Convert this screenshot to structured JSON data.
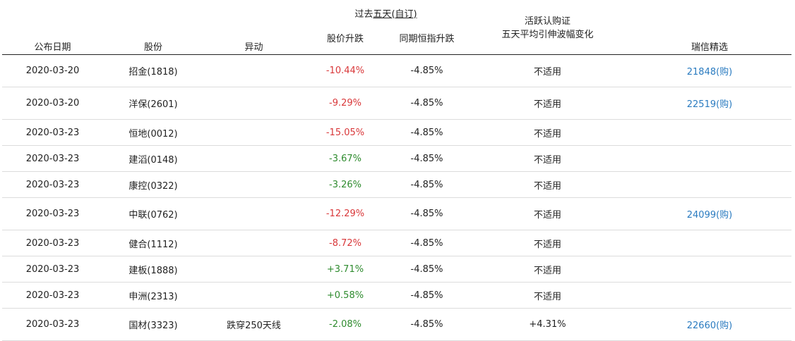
{
  "header": {
    "date": "公布日期",
    "stock": "股份",
    "movement": "异动",
    "past_prefix": "过去",
    "past_underlined": "五天",
    "past_suffix": "(自订)",
    "stock_change": "股价升跌",
    "hsi_change": "同期恒指升跌",
    "warrant_line1": "活跃认购证",
    "warrant_line2": "五天平均引伸波幅变化",
    "ubs": "瑞信精选"
  },
  "rows": [
    {
      "date": "2020-03-20",
      "stock": "招金(1818)",
      "movement": "",
      "stock_change": "-10.44%",
      "trend": "neg",
      "hsi_change": "-4.85%",
      "vol_change": "不适用",
      "ubs": "21848(购)",
      "tall": true
    },
    {
      "date": "2020-03-20",
      "stock": "洋保(2601)",
      "movement": "",
      "stock_change": "-9.29%",
      "trend": "neg",
      "hsi_change": "-4.85%",
      "vol_change": "不适用",
      "ubs": "22519(购)",
      "tall": true
    },
    {
      "date": "2020-03-23",
      "stock": "恒地(0012)",
      "movement": "",
      "stock_change": "-15.05%",
      "trend": "neg",
      "hsi_change": "-4.85%",
      "vol_change": "不适用",
      "ubs": "",
      "tall": false
    },
    {
      "date": "2020-03-23",
      "stock": "建滔(0148)",
      "movement": "",
      "stock_change": "-3.67%",
      "trend": "pos",
      "hsi_change": "-4.85%",
      "vol_change": "不适用",
      "ubs": "",
      "tall": false
    },
    {
      "date": "2020-03-23",
      "stock": "康控(0322)",
      "movement": "",
      "stock_change": "-3.26%",
      "trend": "pos",
      "hsi_change": "-4.85%",
      "vol_change": "不适用",
      "ubs": "",
      "tall": false
    },
    {
      "date": "2020-03-23",
      "stock": "中联(0762)",
      "movement": "",
      "stock_change": "-12.29%",
      "trend": "neg",
      "hsi_change": "-4.85%",
      "vol_change": "不适用",
      "ubs": "24099(购)",
      "tall": true
    },
    {
      "date": "2020-03-23",
      "stock": "健合(1112)",
      "movement": "",
      "stock_change": "-8.72%",
      "trend": "neg",
      "hsi_change": "-4.85%",
      "vol_change": "不适用",
      "ubs": "",
      "tall": false
    },
    {
      "date": "2020-03-23",
      "stock": "建板(1888)",
      "movement": "",
      "stock_change": "+3.71%",
      "trend": "pos",
      "hsi_change": "-4.85%",
      "vol_change": "不适用",
      "ubs": "",
      "tall": false
    },
    {
      "date": "2020-03-23",
      "stock": "申洲(2313)",
      "movement": "",
      "stock_change": "+0.58%",
      "trend": "pos",
      "hsi_change": "-4.85%",
      "vol_change": "不适用",
      "ubs": "",
      "tall": false
    },
    {
      "date": "2020-03-23",
      "stock": "国材(3323)",
      "movement": "跌穿250天线",
      "stock_change": "-2.08%",
      "trend": "pos",
      "hsi_change": "-4.85%",
      "vol_change": "+4.31%",
      "ubs": "22660(购)",
      "tall": true
    }
  ],
  "colors": {
    "negative": "#d9383a",
    "positive": "#2e8b2e",
    "link": "#2a7bc0"
  }
}
